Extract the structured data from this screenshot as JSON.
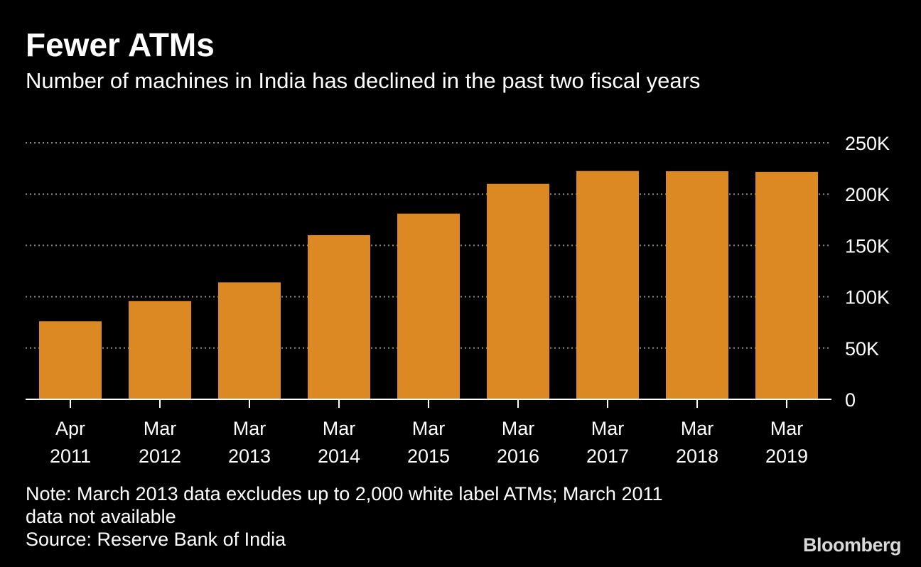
{
  "title": "Fewer ATMs",
  "subtitle": "Number of machines in India has declined in the past two fiscal years",
  "note_line1": "Note: March 2013 data excludes up to 2,000 white label ATMs; March 2011",
  "note_line2": "data not available",
  "source": "Source: Reserve Bank of India",
  "brand": "Bloomberg",
  "colors": {
    "bar": "#dd8923",
    "background": "#000000",
    "text": "#ffffff",
    "grid": "#888888"
  },
  "chart_data": {
    "type": "bar",
    "categories": [
      [
        "Apr",
        "2011"
      ],
      [
        "Mar",
        "2012"
      ],
      [
        "Mar",
        "2013"
      ],
      [
        "Mar",
        "2014"
      ],
      [
        "Mar",
        "2015"
      ],
      [
        "Mar",
        "2016"
      ],
      [
        "Mar",
        "2017"
      ],
      [
        "Mar",
        "2018"
      ],
      [
        "Mar",
        "2019"
      ]
    ],
    "values": [
      76000,
      95700,
      114000,
      160000,
      181000,
      210000,
      222500,
      222300,
      221700
    ],
    "ylim": [
      0,
      250000
    ],
    "yticks": [
      0,
      50000,
      100000,
      150000,
      200000,
      250000
    ],
    "ytick_labels": [
      "0",
      "50K",
      "100K",
      "150K",
      "200K",
      "250K"
    ],
    "y_axis_side": "right",
    "grid": "horizontal-dotted"
  }
}
